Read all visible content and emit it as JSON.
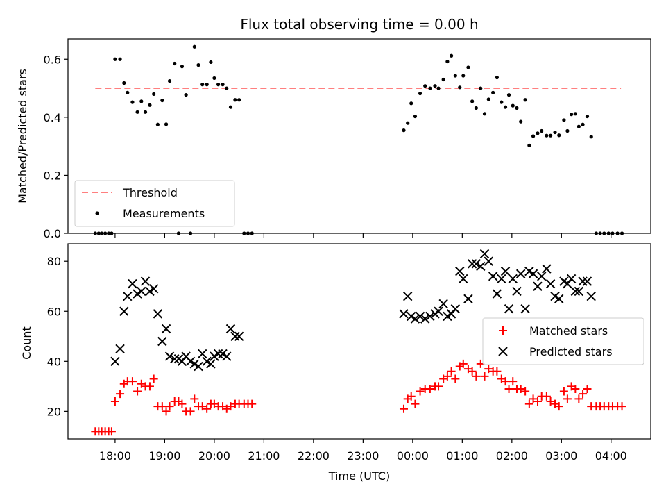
{
  "figure": {
    "title": "Flux total observing time = 0.00 h",
    "xlabel": "Time (UTC)",
    "xticks": [
      "18:00",
      "19:00",
      "20:00",
      "21:00",
      "22:00",
      "23:00",
      "00:00",
      "01:00",
      "02:00",
      "03:00",
      "04:00"
    ]
  },
  "chart_data": [
    {
      "type": "scatter",
      "ylabel": "Matched/Predicted stars",
      "xlim": [
        -0.95,
        10.8
      ],
      "ylim": [
        0,
        0.67
      ],
      "yticks": [
        0.0,
        0.2,
        0.4,
        0.6
      ],
      "legend": {
        "placement": "lower-left"
      },
      "threshold": {
        "name": "Threshold",
        "y": 0.5,
        "x": [
          -0.4,
          10.2
        ],
        "color": "#ff7f7f"
      },
      "series": [
        {
          "name": "Measurements",
          "color": "#000000",
          "points": [
            [
              -0.4,
              0
            ],
            [
              -0.33,
              0
            ],
            [
              -0.27,
              0
            ],
            [
              -0.2,
              0
            ],
            [
              -0.13,
              0
            ],
            [
              -0.07,
              0
            ],
            [
              0.0,
              0.6
            ],
            [
              0.1,
              0.6
            ],
            [
              0.18,
              0.518
            ],
            [
              0.25,
              0.485
            ],
            [
              0.35,
              0.452
            ],
            [
              0.45,
              0.418
            ],
            [
              0.53,
              0.455
            ],
            [
              0.61,
              0.418
            ],
            [
              0.7,
              0.442
            ],
            [
              0.78,
              0.48
            ],
            [
              0.86,
              0.375
            ],
            [
              0.95,
              0.458
            ],
            [
              1.03,
              0.376
            ],
            [
              1.1,
              0.525
            ],
            [
              1.2,
              0.585
            ],
            [
              1.28,
              0.0
            ],
            [
              1.35,
              0.575
            ],
            [
              1.43,
              0.477
            ],
            [
              1.52,
              0.0
            ],
            [
              1.6,
              0.643
            ],
            [
              1.68,
              0.58
            ],
            [
              1.76,
              0.513
            ],
            [
              1.85,
              0.513
            ],
            [
              1.93,
              0.59
            ],
            [
              2.0,
              0.535
            ],
            [
              2.08,
              0.513
            ],
            [
              2.17,
              0.513
            ],
            [
              2.25,
              0.5
            ],
            [
              2.33,
              0.435
            ],
            [
              2.42,
              0.46
            ],
            [
              2.5,
              0.46
            ],
            [
              2.6,
              0
            ],
            [
              2.68,
              0
            ],
            [
              2.76,
              0
            ],
            [
              5.82,
              0.355
            ],
            [
              5.9,
              0.38
            ],
            [
              5.97,
              0.448
            ],
            [
              6.05,
              0.403
            ],
            [
              6.15,
              0.482
            ],
            [
              6.25,
              0.508
            ],
            [
              6.35,
              0.5
            ],
            [
              6.45,
              0.508
            ],
            [
              6.52,
              0.5
            ],
            [
              6.62,
              0.53
            ],
            [
              6.7,
              0.592
            ],
            [
              6.78,
              0.612
            ],
            [
              6.86,
              0.543
            ],
            [
              6.95,
              0.503
            ],
            [
              7.02,
              0.543
            ],
            [
              7.12,
              0.572
            ],
            [
              7.2,
              0.455
            ],
            [
              7.28,
              0.432
            ],
            [
              7.37,
              0.5
            ],
            [
              7.45,
              0.412
            ],
            [
              7.53,
              0.462
            ],
            [
              7.62,
              0.485
            ],
            [
              7.7,
              0.537
            ],
            [
              7.79,
              0.452
            ],
            [
              7.87,
              0.435
            ],
            [
              7.94,
              0.477
            ],
            [
              8.02,
              0.44
            ],
            [
              8.1,
              0.432
            ],
            [
              8.18,
              0.385
            ],
            [
              8.27,
              0.46
            ],
            [
              8.35,
              0.303
            ],
            [
              8.43,
              0.335
            ],
            [
              8.52,
              0.345
            ],
            [
              8.6,
              0.353
            ],
            [
              8.7,
              0.337
            ],
            [
              8.78,
              0.337
            ],
            [
              8.87,
              0.348
            ],
            [
              8.95,
              0.338
            ],
            [
              9.05,
              0.39
            ],
            [
              9.12,
              0.353
            ],
            [
              9.2,
              0.41
            ],
            [
              9.28,
              0.412
            ],
            [
              9.35,
              0.368
            ],
            [
              9.43,
              0.375
            ],
            [
              9.52,
              0.403
            ],
            [
              9.6,
              0.333
            ],
            [
              9.7,
              0
            ],
            [
              9.78,
              0
            ],
            [
              9.86,
              0
            ],
            [
              9.95,
              0
            ],
            [
              10.03,
              0
            ],
            [
              10.13,
              0
            ],
            [
              10.22,
              0
            ]
          ]
        }
      ]
    },
    {
      "type": "scatter",
      "ylabel": "Count",
      "xlim": [
        -0.95,
        10.8
      ],
      "ylim": [
        9,
        87
      ],
      "yticks": [
        20,
        40,
        60,
        80
      ],
      "legend": {
        "placement": "center-right"
      },
      "series": [
        {
          "name": "Matched stars",
          "marker": "plus",
          "color": "#ff0000",
          "points": [
            [
              -0.4,
              12
            ],
            [
              -0.33,
              12
            ],
            [
              -0.27,
              12
            ],
            [
              -0.2,
              12
            ],
            [
              -0.13,
              12
            ],
            [
              -0.07,
              12
            ],
            [
              0.0,
              24
            ],
            [
              0.1,
              27
            ],
            [
              0.18,
              31
            ],
            [
              0.25,
              32
            ],
            [
              0.35,
              32
            ],
            [
              0.45,
              28
            ],
            [
              0.53,
              31
            ],
            [
              0.61,
              30
            ],
            [
              0.7,
              30
            ],
            [
              0.78,
              33
            ],
            [
              0.86,
              22
            ],
            [
              0.95,
              22
            ],
            [
              1.03,
              20
            ],
            [
              1.1,
              22
            ],
            [
              1.2,
              24
            ],
            [
              1.28,
              24
            ],
            [
              1.35,
              23
            ],
            [
              1.43,
              20
            ],
            [
              1.52,
              20
            ],
            [
              1.6,
              25
            ],
            [
              1.68,
              22
            ],
            [
              1.76,
              22
            ],
            [
              1.85,
              21
            ],
            [
              1.93,
              23
            ],
            [
              2.0,
              23
            ],
            [
              2.08,
              22
            ],
            [
              2.17,
              22
            ],
            [
              2.25,
              21
            ],
            [
              2.33,
              22
            ],
            [
              2.42,
              23
            ],
            [
              2.5,
              23
            ],
            [
              2.6,
              23
            ],
            [
              2.68,
              23
            ],
            [
              2.76,
              23
            ],
            [
              5.82,
              21
            ],
            [
              5.9,
              25
            ],
            [
              5.97,
              26
            ],
            [
              6.05,
              23
            ],
            [
              6.15,
              28
            ],
            [
              6.25,
              29
            ],
            [
              6.35,
              29
            ],
            [
              6.45,
              30
            ],
            [
              6.52,
              30
            ],
            [
              6.62,
              33
            ],
            [
              6.7,
              34
            ],
            [
              6.78,
              36
            ],
            [
              6.86,
              33
            ],
            [
              6.95,
              38
            ],
            [
              7.02,
              39
            ],
            [
              7.12,
              37
            ],
            [
              7.2,
              36
            ],
            [
              7.28,
              34
            ],
            [
              7.37,
              39
            ],
            [
              7.45,
              34
            ],
            [
              7.53,
              37
            ],
            [
              7.62,
              36
            ],
            [
              7.7,
              36
            ],
            [
              7.79,
              33
            ],
            [
              7.87,
              32
            ],
            [
              7.94,
              29
            ],
            [
              8.02,
              32
            ],
            [
              8.1,
              29
            ],
            [
              8.18,
              29
            ],
            [
              8.27,
              28
            ],
            [
              8.35,
              23
            ],
            [
              8.43,
              25
            ],
            [
              8.52,
              24
            ],
            [
              8.6,
              26
            ],
            [
              8.7,
              26
            ],
            [
              8.78,
              24
            ],
            [
              8.87,
              23
            ],
            [
              8.95,
              22
            ],
            [
              9.05,
              28
            ],
            [
              9.12,
              25
            ],
            [
              9.2,
              30
            ],
            [
              9.28,
              29
            ],
            [
              9.35,
              25
            ],
            [
              9.43,
              27
            ],
            [
              9.52,
              29
            ],
            [
              9.6,
              22
            ],
            [
              9.7,
              22
            ],
            [
              9.78,
              22
            ],
            [
              9.86,
              22
            ],
            [
              9.95,
              22
            ],
            [
              10.03,
              22
            ],
            [
              10.13,
              22
            ],
            [
              10.22,
              22
            ]
          ]
        },
        {
          "name": "Predicted stars",
          "marker": "x",
          "color": "#000000",
          "points": [
            [
              0.0,
              40
            ],
            [
              0.1,
              45
            ],
            [
              0.18,
              60
            ],
            [
              0.25,
              66
            ],
            [
              0.35,
              71
            ],
            [
              0.45,
              67
            ],
            [
              0.53,
              68
            ],
            [
              0.61,
              72
            ],
            [
              0.7,
              68
            ],
            [
              0.78,
              69
            ],
            [
              0.86,
              59
            ],
            [
              0.95,
              48
            ],
            [
              1.03,
              53
            ],
            [
              1.1,
              42
            ],
            [
              1.2,
              41
            ],
            [
              1.28,
              41
            ],
            [
              1.35,
              40
            ],
            [
              1.43,
              42
            ],
            [
              1.52,
              40
            ],
            [
              1.6,
              39
            ],
            [
              1.68,
              38
            ],
            [
              1.76,
              43
            ],
            [
              1.85,
              40
            ],
            [
              1.93,
              39
            ],
            [
              2.0,
              42
            ],
            [
              2.08,
              43
            ],
            [
              2.17,
              43
            ],
            [
              2.25,
              42
            ],
            [
              2.33,
              53
            ],
            [
              2.42,
              50
            ],
            [
              2.5,
              50
            ],
            [
              5.82,
              59
            ],
            [
              5.9,
              66
            ],
            [
              5.97,
              58
            ],
            [
              6.05,
              57
            ],
            [
              6.15,
              58
            ],
            [
              6.25,
              57
            ],
            [
              6.35,
              58
            ],
            [
              6.45,
              59
            ],
            [
              6.52,
              60
            ],
            [
              6.62,
              63
            ],
            [
              6.7,
              58
            ],
            [
              6.78,
              59
            ],
            [
              6.86,
              61
            ],
            [
              6.95,
              76
            ],
            [
              7.02,
              73
            ],
            [
              7.12,
              65
            ],
            [
              7.2,
              79
            ],
            [
              7.28,
              79
            ],
            [
              7.37,
              78
            ],
            [
              7.45,
              83
            ],
            [
              7.53,
              80
            ],
            [
              7.62,
              74
            ],
            [
              7.7,
              67
            ],
            [
              7.79,
              73
            ],
            [
              7.87,
              76
            ],
            [
              7.94,
              61
            ],
            [
              8.02,
              73
            ],
            [
              8.1,
              68
            ],
            [
              8.18,
              75
            ],
            [
              8.27,
              61
            ],
            [
              8.35,
              76
            ],
            [
              8.43,
              75
            ],
            [
              8.52,
              70
            ],
            [
              8.6,
              74
            ],
            [
              8.7,
              77
            ],
            [
              8.78,
              71
            ],
            [
              8.87,
              66
            ],
            [
              8.95,
              65
            ],
            [
              9.05,
              72
            ],
            [
              9.12,
              71
            ],
            [
              9.2,
              73
            ],
            [
              9.28,
              68
            ],
            [
              9.35,
              68
            ],
            [
              9.43,
              72
            ],
            [
              9.52,
              72
            ],
            [
              9.6,
              66
            ]
          ]
        }
      ]
    }
  ]
}
